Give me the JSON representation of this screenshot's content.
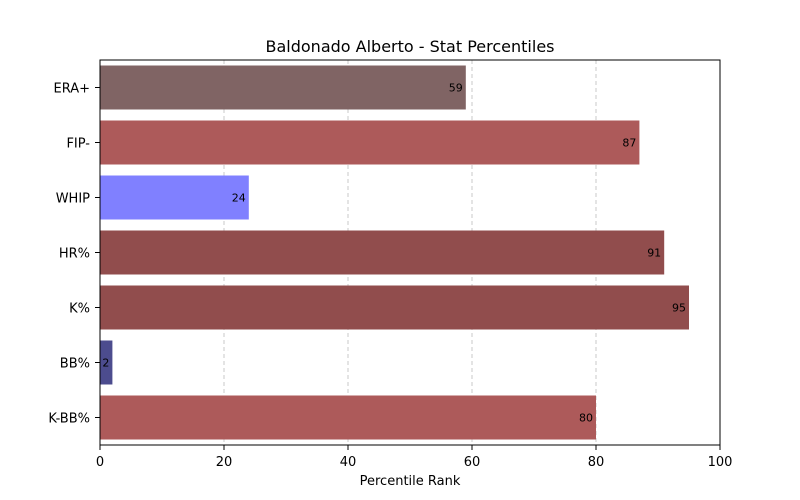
{
  "chart_data": {
    "type": "bar",
    "orientation": "horizontal",
    "title": "Baldonado Alberto - Stat Percentiles",
    "xlabel": "Percentile Rank",
    "ylabel": "",
    "xlim": [
      0,
      100
    ],
    "xticks": [
      0,
      20,
      40,
      60,
      80,
      100
    ],
    "grid": "x-dashed",
    "categories": [
      "ERA+",
      "FIP-",
      "WHIP",
      "HR%",
      "K%",
      "BB%",
      "K-BB%"
    ],
    "values": [
      59,
      87,
      24,
      91,
      95,
      2,
      80
    ],
    "colors": [
      "#806464",
      "#AD5A5A",
      "#8080FF",
      "#914D4D",
      "#914D4D",
      "#4C4C8E",
      "#AD5A5A"
    ]
  }
}
